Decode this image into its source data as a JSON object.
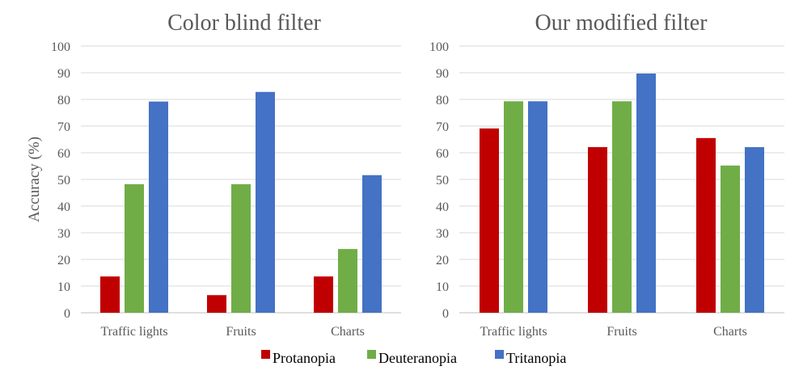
{
  "chart_data": [
    {
      "type": "bar",
      "title": "Color blind filter",
      "xlabel": "",
      "ylabel": "Accuracy (%)",
      "ylim": [
        0,
        100
      ],
      "yticks": [
        0,
        10,
        20,
        30,
        40,
        50,
        60,
        70,
        80,
        90,
        100
      ],
      "grid": true,
      "categories": [
        "Traffic lights",
        "Fruits",
        "Charts"
      ],
      "series": [
        {
          "name": "Protanopia",
          "color": "#c00000",
          "values": [
            13.6,
            6.6,
            13.6
          ]
        },
        {
          "name": "Deuteranopia",
          "color": "#70ad47",
          "values": [
            48.2,
            48.2,
            23.9
          ]
        },
        {
          "name": "Tritanopia",
          "color": "#4472c4",
          "values": [
            79.2,
            82.8,
            51.6
          ]
        }
      ]
    },
    {
      "type": "bar",
      "title": "Our modified filter",
      "xlabel": "",
      "ylabel": "",
      "ylim": [
        0,
        100
      ],
      "yticks": [
        0,
        10,
        20,
        30,
        40,
        50,
        60,
        70,
        80,
        90,
        100
      ],
      "grid": true,
      "categories": [
        "Traffic lights",
        "Fruits",
        "Charts"
      ],
      "series": [
        {
          "name": "Protanopia",
          "color": "#c00000",
          "values": [
            69.1,
            62.1,
            65.5
          ]
        },
        {
          "name": "Deuteranopia",
          "color": "#70ad47",
          "values": [
            79.3,
            79.3,
            55.2
          ]
        },
        {
          "name": "Tritanopia",
          "color": "#4472c4",
          "values": [
            79.3,
            89.7,
            62.1
          ]
        }
      ]
    }
  ],
  "legend": {
    "placement": "bottom",
    "items": [
      {
        "label": "Protanopia",
        "color": "#c00000"
      },
      {
        "label": "Deuteranopia",
        "color": "#70ad47"
      },
      {
        "label": "Tritanopia",
        "color": "#4472c4"
      }
    ]
  }
}
